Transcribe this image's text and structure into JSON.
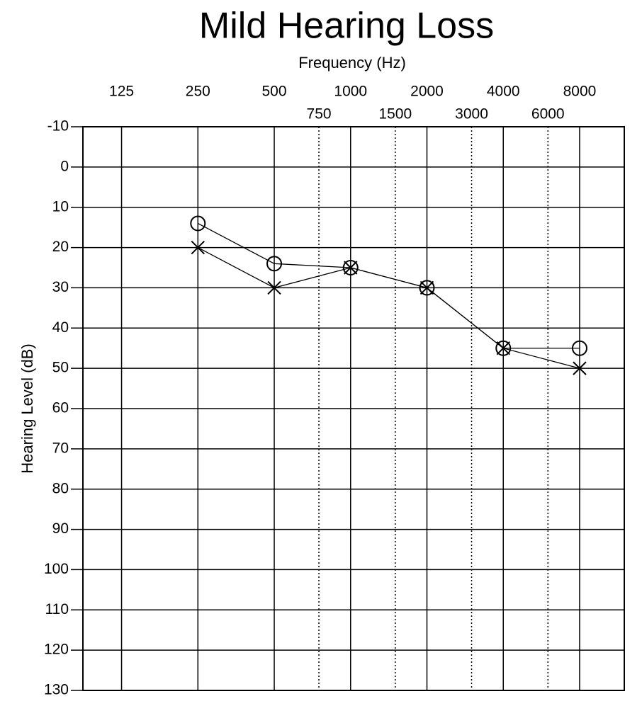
{
  "chart_data": {
    "type": "line",
    "title": "Mild Hearing Loss",
    "x_label": "Frequency (Hz)",
    "y_label": "Hearing Level (dB)",
    "x": [
      250,
      500,
      1000,
      2000,
      4000,
      8000
    ],
    "series": [
      {
        "marker": "circle",
        "color": "#000000",
        "values": [
          14,
          24,
          25,
          30,
          45,
          45
        ]
      },
      {
        "marker": "cross",
        "color": "#000000",
        "values": [
          20,
          30,
          25,
          30,
          45,
          50
        ]
      }
    ],
    "xscale": "log",
    "xlim": [
      88,
      12000
    ],
    "xticks": [
      125,
      250,
      500,
      1000,
      2000,
      4000,
      8000
    ],
    "xticks_minor": [
      750,
      1500,
      3000,
      6000
    ],
    "ylim": [
      -10,
      130
    ],
    "y_inverted": true,
    "yticks": [
      -10,
      0,
      10,
      20,
      30,
      40,
      50,
      60,
      70,
      80,
      90,
      100,
      110,
      120,
      130
    ],
    "grid": true,
    "title_color": "#5b5fc9"
  }
}
